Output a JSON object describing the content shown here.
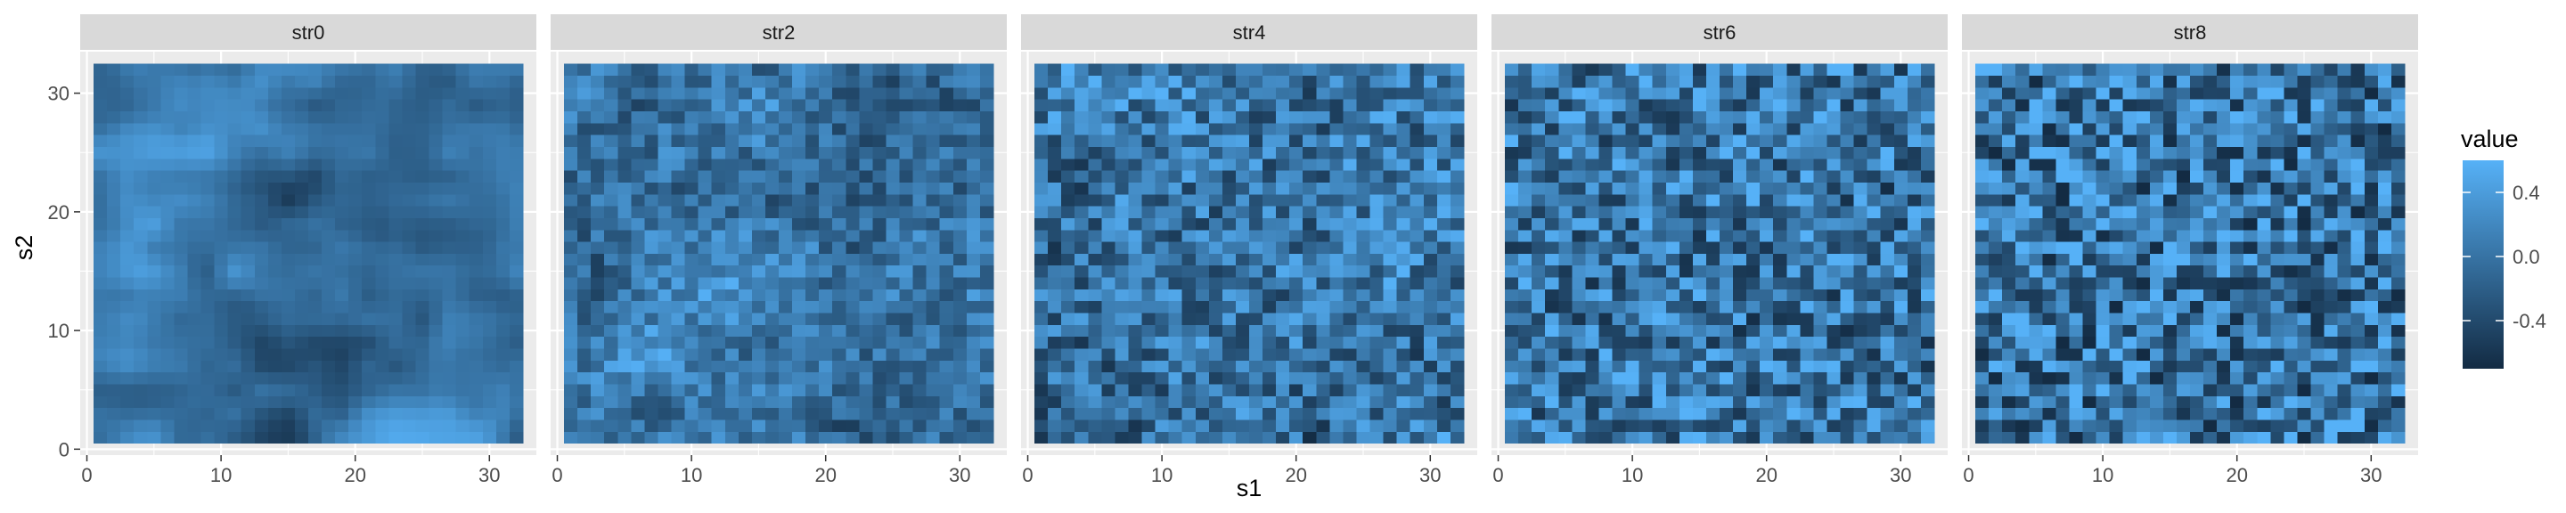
{
  "chart_data": {
    "type": "heatmap",
    "facets": [
      "str0",
      "str2",
      "str4",
      "str6",
      "str8"
    ],
    "xlabel": "s1",
    "ylabel": "s2",
    "x_ticks": [
      0,
      10,
      20,
      30
    ],
    "y_ticks": [
      0,
      10,
      20,
      30
    ],
    "xlim": [
      -0.5,
      33.5
    ],
    "ylim": [
      -0.5,
      33.5
    ],
    "grid_cells": 32,
    "cell_range": [
      1,
      32
    ],
    "grid": true,
    "legend": {
      "title": "value",
      "placement": "right",
      "ticks": [
        0.4,
        0.0,
        -0.4
      ],
      "tick_labels": [
        "0.4",
        "0.0",
        "-0.4"
      ],
      "range": [
        -0.7,
        0.6
      ],
      "color_low": "#132B43",
      "color_high": "#56B1F7"
    },
    "facet_roughness": [
      0.0,
      0.45,
      0.7,
      0.85,
      0.95
    ]
  },
  "colors": {
    "panel_bg": "#EBEBEB",
    "strip_bg": "#D9D9D9",
    "grid": "#FFFFFF",
    "tick_text": "#4D4D4D"
  }
}
